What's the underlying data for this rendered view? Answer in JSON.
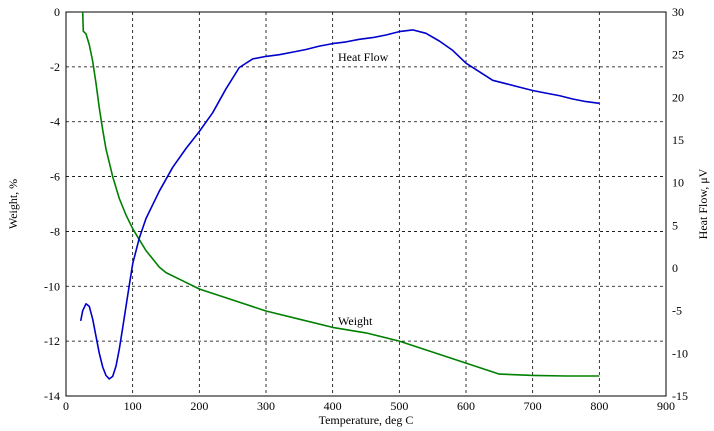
{
  "chart_data": {
    "type": "line",
    "title": "",
    "xlabel": "Temperature, deg C",
    "ylabel_left": "Weight, %",
    "ylabel_right": "Heat Flow, μV",
    "xlim": [
      0,
      900
    ],
    "ylim_left": [
      -14,
      0
    ],
    "ylim_right": [
      -15,
      30
    ],
    "x_ticks": [
      "0",
      "100",
      "200",
      "300",
      "400",
      "500",
      "600",
      "700",
      "800",
      "900"
    ],
    "y_left_ticks": [
      "0",
      "-2",
      "-4",
      "-6",
      "-8",
      "-10",
      "-12",
      "-14"
    ],
    "y_right_ticks": [
      "30",
      "25",
      "20",
      "15",
      "10",
      "5",
      "0",
      "-5",
      "-10",
      "-15"
    ],
    "grid": true,
    "annotations": [
      "Heat Flow",
      "Weight"
    ],
    "series": [
      {
        "name": "Weight",
        "axis": "left",
        "color": "#008000",
        "x": [
          25,
          26,
          30,
          35,
          40,
          45,
          50,
          55,
          60,
          70,
          80,
          90,
          100,
          110,
          120,
          130,
          140,
          150,
          175,
          200,
          250,
          300,
          350,
          400,
          450,
          500,
          550,
          600,
          650,
          700,
          750,
          800
        ],
        "y": [
          0,
          -0.7,
          -0.8,
          -1.2,
          -1.8,
          -2.6,
          -3.5,
          -4.3,
          -5.0,
          -6.0,
          -6.8,
          -7.4,
          -7.9,
          -8.3,
          -8.7,
          -9.0,
          -9.3,
          -9.5,
          -9.8,
          -10.1,
          -10.5,
          -10.9,
          -11.2,
          -11.5,
          -11.7,
          -12.0,
          -12.4,
          -12.8,
          -13.2,
          -13.25,
          -13.27,
          -13.27
        ]
      },
      {
        "name": "Heat Flow",
        "axis": "right",
        "color": "#0000cc",
        "x": [
          22,
          25,
          30,
          35,
          40,
          45,
          50,
          55,
          60,
          65,
          70,
          75,
          80,
          85,
          90,
          95,
          100,
          110,
          120,
          140,
          160,
          180,
          200,
          220,
          240,
          260,
          280,
          300,
          320,
          340,
          360,
          380,
          400,
          420,
          440,
          460,
          480,
          500,
          520,
          540,
          560,
          580,
          600,
          620,
          640,
          660,
          680,
          700,
          720,
          740,
          760,
          780,
          800
        ],
        "y": [
          -6.2,
          -5.0,
          -4.2,
          -4.5,
          -6.0,
          -8.0,
          -10.0,
          -11.6,
          -12.6,
          -13.0,
          -12.7,
          -11.5,
          -9.5,
          -7.0,
          -4.5,
          -2.0,
          0.5,
          3.5,
          5.8,
          9.0,
          11.8,
          14.0,
          16.0,
          18.2,
          21.0,
          23.5,
          24.5,
          24.8,
          25.0,
          25.3,
          25.6,
          26.0,
          26.3,
          26.5,
          26.8,
          27.0,
          27.3,
          27.7,
          27.9,
          27.5,
          26.6,
          25.5,
          24.0,
          23.0,
          22.0,
          21.6,
          21.2,
          20.8,
          20.5,
          20.2,
          19.8,
          19.5,
          19.3
        ]
      }
    ]
  }
}
